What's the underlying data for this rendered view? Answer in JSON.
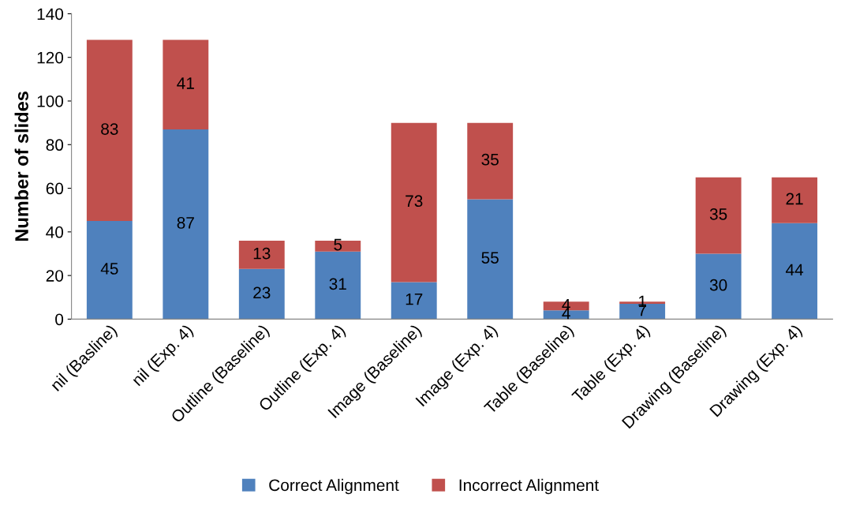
{
  "chart_data": {
    "type": "bar",
    "stacked": true,
    "ylabel": "Number of slides",
    "categories": [
      "nil (Basline)",
      "nil (Exp. 4)",
      "Outline (Baseline)",
      "Outline (Exp. 4)",
      "Image (Baseline)",
      "Image (Exp. 4)",
      "Table (Baseline)",
      "Table (Exp. 4)",
      "Drawing (Baseline)",
      "Drawing (Exp. 4)"
    ],
    "series": [
      {
        "name": "Correct Alignment",
        "color": "#4f81bd",
        "values": [
          45,
          87,
          23,
          31,
          17,
          55,
          4,
          7,
          30,
          44
        ]
      },
      {
        "name": "Incorrect Alignment",
        "color": "#c0504d",
        "values": [
          83,
          41,
          13,
          5,
          73,
          35,
          4,
          1,
          35,
          21
        ]
      }
    ],
    "ylim": [
      0,
      140
    ],
    "yticks": [
      0,
      20,
      40,
      60,
      80,
      100,
      120,
      140
    ],
    "data_labels": true,
    "legend": "bottom",
    "grid": false
  }
}
